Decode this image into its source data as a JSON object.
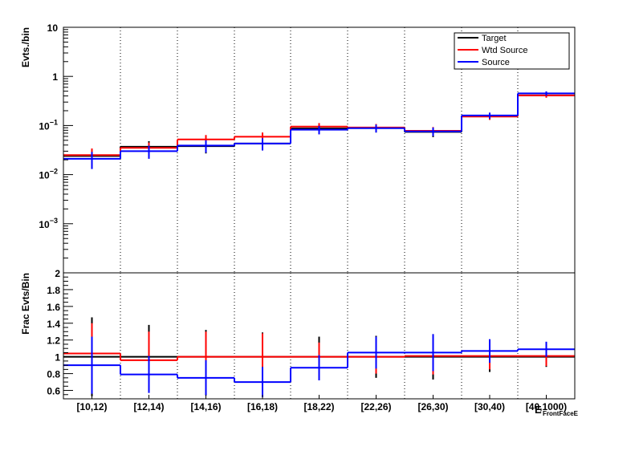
{
  "chart_data": [
    {
      "type": "step",
      "panel": "top",
      "ylabel": "Evts./bin",
      "yscale": "log",
      "ylim": [
        0.0001,
        10
      ],
      "y_tick_labels": [
        {
          "v": 10,
          "base": "10",
          "exp": ""
        },
        {
          "v": 1,
          "base": "1",
          "exp": ""
        },
        {
          "v": 0.1,
          "base": "10",
          "exp": "−1"
        },
        {
          "v": 0.01,
          "base": "10",
          "exp": "−2"
        },
        {
          "v": 0.001,
          "base": "10",
          "exp": "−3"
        }
      ],
      "categories": [
        "[10,12)",
        "[12,14)",
        "[14,16)",
        "[16,18)",
        "[18,22)",
        "[22,26)",
        "[26,30)",
        "[30,40)",
        "[40,1000)"
      ],
      "legend": [
        {
          "label": "Target",
          "color": "#000000"
        },
        {
          "label": "Wtd Source",
          "color": "#ff0000"
        },
        {
          "label": "Source",
          "color": "#0000ff"
        }
      ],
      "legend_position": "top-right",
      "series": [
        {
          "name": "Target",
          "color": "#000000",
          "values": [
            0.024,
            0.037,
            0.038,
            0.043,
            0.087,
            0.089,
            0.074,
            0.155,
            0.41
          ],
          "errors": [
            0.009,
            0.011,
            0.011,
            0.012,
            0.017,
            0.017,
            0.016,
            0.023,
            0.04
          ]
        },
        {
          "name": "Wtd Source",
          "color": "#ff0000",
          "values": [
            0.025,
            0.035,
            0.052,
            0.059,
            0.095,
            0.091,
            0.078,
            0.152,
            0.41
          ],
          "errors": [
            0.009,
            0.01,
            0.012,
            0.013,
            0.017,
            0.016,
            0.015,
            0.022,
            0.04
          ]
        },
        {
          "name": "Source",
          "color": "#0000ff",
          "values": [
            0.021,
            0.03,
            0.039,
            0.043,
            0.082,
            0.088,
            0.076,
            0.16,
            0.45
          ],
          "errors": [
            0.008,
            0.009,
            0.011,
            0.012,
            0.016,
            0.016,
            0.015,
            0.023,
            0.045
          ]
        }
      ]
    },
    {
      "type": "step",
      "panel": "bottom",
      "ylabel": "Frac Evts/Bin",
      "xlabel": "E",
      "xlabel_sub": "FrontFaceE",
      "ylim": [
        0.5,
        2.0
      ],
      "y_tick_labels": [
        "0.6",
        "0.8",
        "1",
        "1.2",
        "1.4",
        "1.6",
        "1.8",
        "2"
      ],
      "categories": [
        "[10,12)",
        "[12,14)",
        "[14,16)",
        "[16,18)",
        "[18,22)",
        "[22,26)",
        "[26,30)",
        "[30,40)",
        "[40,1000)"
      ],
      "series": [
        {
          "name": "Target",
          "color": "#000000",
          "values": [
            1.0,
            1.0,
            1.0,
            1.0,
            1.0,
            1.0,
            1.0,
            1.0,
            1.0
          ],
          "errors": [
            0.47,
            0.38,
            0.32,
            0.29,
            0.24,
            0.25,
            0.27,
            0.18,
            0.12
          ]
        },
        {
          "name": "Wtd Source",
          "color": "#ff0000",
          "values": [
            1.04,
            0.96,
            1.0,
            1.0,
            1.0,
            1.0,
            1.01,
            1.01,
            1.01
          ],
          "errors": [
            0.36,
            0.34,
            0.3,
            0.28,
            0.17,
            0.2,
            0.22,
            0.16,
            0.12
          ]
        },
        {
          "name": "Source",
          "color": "#0000ff",
          "values": [
            0.9,
            0.79,
            0.75,
            0.7,
            0.87,
            1.05,
            1.05,
            1.07,
            1.09
          ],
          "errors": [
            0.34,
            0.22,
            0.21,
            0.18,
            0.15,
            0.19,
            0.22,
            0.14,
            0.09
          ]
        }
      ]
    }
  ]
}
